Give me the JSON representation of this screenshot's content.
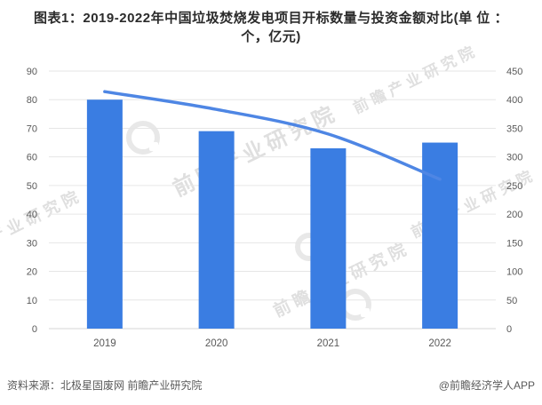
{
  "title": "图表1：2019-2022年中国垃圾焚烧发电项目开标数量与投资金额对比(单 位 ：个，亿元)",
  "footer": {
    "source": "资料来源：北极星固废网 前瞻产业研究院",
    "credit": "@前瞻经济学人APP"
  },
  "watermark": {
    "text": "前瞻产业研究院"
  },
  "colors": {
    "bar": "#3A7DE2",
    "line": "#4E86E4",
    "grid": "#E6E6E6",
    "axis_line": "#D5D5D5",
    "tick_text": "#595959",
    "title": "#2B2B2B",
    "footer": "#595959"
  },
  "chart_data": {
    "type": "bar",
    "subtype": "bar+line-dual-axis",
    "title": "2019-2022年中国垃圾焚烧发电项目开标数量与投资金额对比",
    "units": {
      "bar": "个",
      "line": "亿元"
    },
    "categories": [
      "2019",
      "2020",
      "2021",
      "2022"
    ],
    "series": [
      {
        "name": "开标数量(个)",
        "type": "bar",
        "axis": "left",
        "values": [
          80,
          69,
          63,
          65
        ]
      },
      {
        "name": "投资金额(亿元)",
        "type": "line",
        "axis": "right",
        "values": [
          414,
          383,
          340,
          261
        ]
      }
    ],
    "left_axis": {
      "min": 0,
      "max": 90,
      "step": 10,
      "ticks": [
        0,
        10,
        20,
        30,
        40,
        50,
        60,
        70,
        80,
        90
      ]
    },
    "right_axis": {
      "min": 0,
      "max": 450,
      "step": 50,
      "ticks": [
        0,
        50,
        100,
        150,
        200,
        250,
        300,
        350,
        400,
        450
      ]
    },
    "grid": true,
    "legend": "none"
  }
}
